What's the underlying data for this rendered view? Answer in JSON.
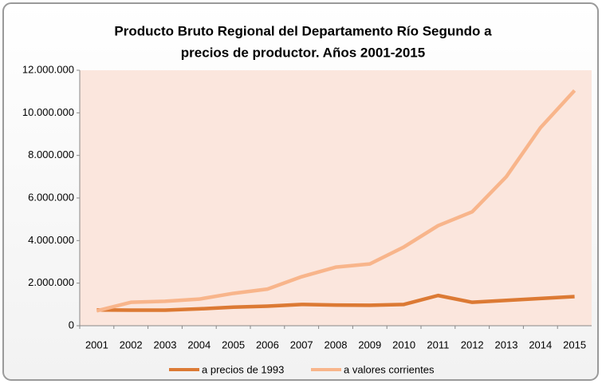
{
  "chart_data": {
    "type": "line",
    "title": [
      "Producto Bruto Regional del Departamento Río Segundo a",
      "precios de productor. Años 2001-2015"
    ],
    "categories": [
      "2001",
      "2002",
      "2003",
      "2004",
      "2005",
      "2006",
      "2007",
      "2008",
      "2009",
      "2010",
      "2011",
      "2012",
      "2013",
      "2014",
      "2015"
    ],
    "series": [
      {
        "name": "a precios de 1993",
        "color": "#dc7a34",
        "values": [
          740000,
          730000,
          730000,
          790000,
          870000,
          920000,
          1000000,
          970000,
          960000,
          1000000,
          1420000,
          1100000,
          1190000,
          1280000,
          1370000
        ]
      },
      {
        "name": "a valores corrientes",
        "color": "#f8b58b",
        "values": [
          700000,
          1100000,
          1150000,
          1250000,
          1520000,
          1720000,
          2300000,
          2750000,
          2900000,
          3700000,
          4700000,
          5350000,
          7000000,
          9300000,
          11050000
        ]
      }
    ],
    "ylim": [
      0,
      12000000
    ],
    "yticks": [
      0,
      {
        "value": 2000000,
        "label": "2.000.000"
      },
      {
        "value": 4000000,
        "label": "4.000.000"
      },
      {
        "value": 6000000,
        "label": "6.000.000"
      },
      {
        "value": 8000000,
        "label": "8.000.000"
      },
      {
        "value": 10000000,
        "label": "10.000.000"
      },
      {
        "value": 12000000,
        "label": "12.000.000"
      }
    ],
    "legend": "bottom"
  }
}
